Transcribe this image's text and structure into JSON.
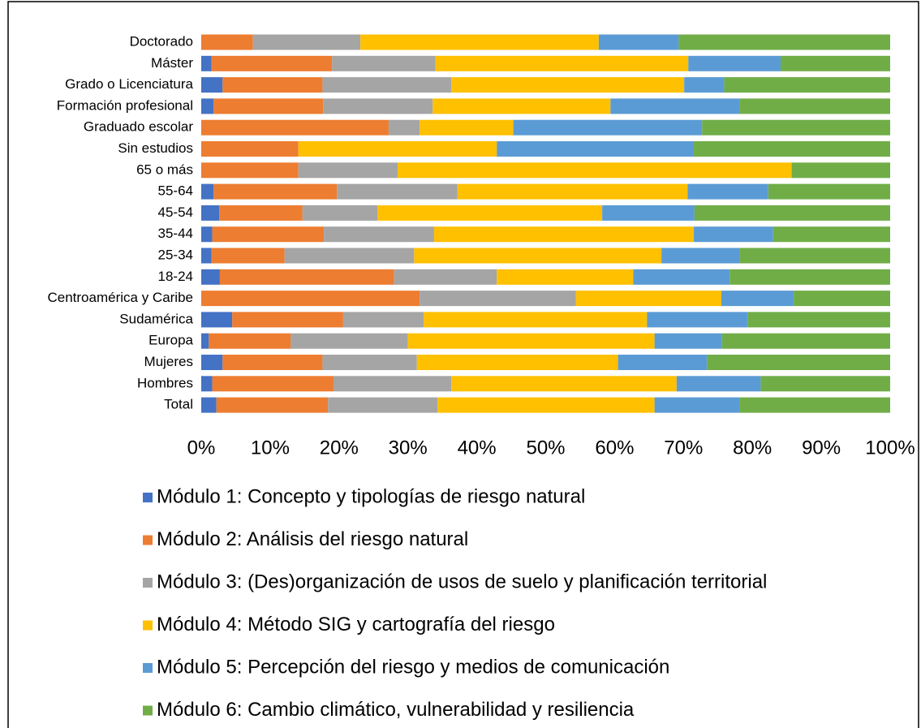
{
  "chart_data": {
    "type": "stacked_bar_horizontal",
    "categories": [
      "Doctorado",
      "Máster",
      "Grado o Licenciatura",
      "Formación profesional",
      "Graduado escolar",
      "Sin estudios",
      "65 o más",
      "55-64",
      "45-54",
      "35-44",
      "25-34",
      "18-24",
      "Centroamérica y Caribe",
      "Sudamérica",
      "Europa",
      "Mujeres",
      "Hombres",
      "Total"
    ],
    "series": [
      {
        "name": "Módulo 1: Concepto y tipologías de riesgo natural",
        "color": "#4472c4",
        "values": [
          0,
          1.5,
          3.1,
          1.8,
          0,
          0,
          0,
          1.8,
          2.6,
          1.6,
          1.5,
          2.7,
          0,
          4.5,
          1.1,
          3.1,
          1.6,
          2.2
        ]
      },
      {
        "name": "Módulo 2: Análisis del riesgo natural",
        "color": "#ed7d31",
        "values": [
          7.5,
          17.5,
          14.5,
          15.9,
          27.2,
          14.1,
          14.1,
          17.9,
          12.1,
          16.2,
          10.6,
          25.3,
          31.7,
          16.1,
          11.9,
          14.5,
          17.6,
          16.2
        ]
      },
      {
        "name": "Módulo 3: (Des)organización de usos de suelo y planificación territorial",
        "color": "#a5a5a5",
        "values": [
          15.6,
          15.0,
          18.7,
          15.9,
          4.5,
          0,
          14.4,
          17.5,
          10.9,
          16.0,
          18.8,
          14.9,
          22.7,
          11.7,
          17.0,
          13.7,
          17.1,
          15.9
        ]
      },
      {
        "name": "Módulo 4: Método SIG y cartografía del riesgo",
        "color": "#ffc000",
        "values": [
          34.6,
          36.7,
          33.8,
          25.8,
          13.6,
          28.8,
          57.2,
          33.4,
          32.6,
          37.7,
          35.9,
          19.8,
          21.1,
          32.4,
          35.8,
          29.2,
          32.7,
          31.5
        ]
      },
      {
        "name": "Módulo 5: Percepción del riesgo y medios de comunicación",
        "color": "#5b9bd5",
        "values": [
          11.6,
          13.4,
          5.8,
          18.7,
          27.4,
          28.6,
          0,
          11.7,
          13.4,
          11.5,
          11.3,
          14.0,
          10.5,
          14.6,
          9.8,
          12.9,
          12.2,
          12.3
        ]
      },
      {
        "name": "Módulo 6: Cambio climático, vulnerabilidad y resiliencia",
        "color": "#70ad47",
        "values": [
          30.7,
          15.9,
          24.1,
          21.9,
          27.3,
          28.5,
          14.3,
          17.7,
          28.4,
          17.0,
          21.9,
          23.3,
          14.0,
          20.7,
          24.4,
          26.6,
          18.8,
          21.9
        ]
      }
    ],
    "xlim": [
      0,
      100
    ],
    "xticks": [
      {
        "value": 0,
        "label": "0%"
      },
      {
        "value": 10,
        "label": "10%"
      },
      {
        "value": 20,
        "label": "20%"
      },
      {
        "value": 30,
        "label": "30%"
      },
      {
        "value": 40,
        "label": "40%"
      },
      {
        "value": 50,
        "label": "50%"
      },
      {
        "value": 60,
        "label": "60%"
      },
      {
        "value": 70,
        "label": "70%"
      },
      {
        "value": 80,
        "label": "80%"
      },
      {
        "value": 90,
        "label": "90%"
      },
      {
        "value": 100,
        "label": "100%"
      }
    ],
    "legend": "bottom"
  }
}
